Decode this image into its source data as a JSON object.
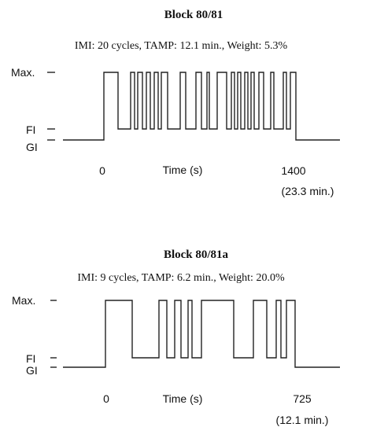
{
  "panels": [
    {
      "title": "Block 80/81",
      "subtitle": "IMI: 20 cycles, TAMP: 12.1 min., Weight: 5.3%",
      "y_labels": {
        "max": "Max.",
        "fi": "FI",
        "gi": "GI"
      },
      "x_labels": {
        "start": "0",
        "axis": "Time (s)",
        "end": "1400",
        "end_note": "(23.3 min.)"
      }
    },
    {
      "title": "Block 80/81a",
      "subtitle": "IMI: 9 cycles, TAMP: 6.2 min., Weight: 20.0%",
      "y_labels": {
        "max": "Max.",
        "fi": "FI",
        "gi": "GI"
      },
      "x_labels": {
        "start": "0",
        "axis": "Time (s)",
        "end": "725",
        "end_note": "(12.1 min.)"
      }
    }
  ]
}
